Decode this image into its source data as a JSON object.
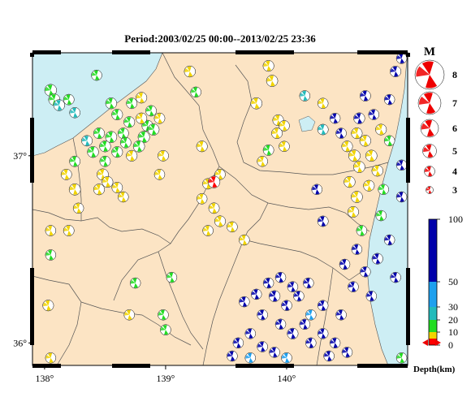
{
  "title": "Period:2003/02/25 00:00--2013/02/25 23:36",
  "map": {
    "lon_range": [
      137.9,
      141.0
    ],
    "lat_range": [
      35.88,
      37.55
    ],
    "x_ticks": [
      {
        "value": 138,
        "label": "138°"
      },
      {
        "value": 139,
        "label": "139°"
      },
      {
        "value": 140,
        "label": "140°"
      }
    ],
    "y_ticks": [
      {
        "value": 36,
        "label": "36°"
      },
      {
        "value": 37,
        "label": "37°"
      }
    ],
    "colors": {
      "land": "#fce4c4",
      "sea": "#cdeef4",
      "border": "#555555",
      "frame": "#000000"
    }
  },
  "magnitude_legend": {
    "label": "M",
    "items": [
      {
        "label": "8",
        "magnitude": 8
      },
      {
        "label": "7",
        "magnitude": 7
      },
      {
        "label": "6",
        "magnitude": 6
      },
      {
        "label": "5",
        "magnitude": 5
      },
      {
        "label": "4",
        "magnitude": 4
      },
      {
        "label": "3",
        "magnitude": 3
      }
    ],
    "color": "#ee0000"
  },
  "depth_legend": {
    "label": "Depth(km)",
    "ticks": [
      "0",
      "10",
      "20",
      "30",
      "50",
      "100"
    ],
    "bands": [
      {
        "from": 0,
        "to": 10,
        "color": "#ff0000"
      },
      {
        "from": 10,
        "to": 20,
        "color": "#f2d400"
      },
      {
        "from": 20,
        "to": 30,
        "color": "#22dd22"
      },
      {
        "from": 30,
        "to": 50,
        "color": "#22bbbb"
      },
      {
        "from": 50,
        "to": 100,
        "color": "#1ea0ee"
      },
      {
        "from": 100,
        "to": 200,
        "color": "#0000aa"
      }
    ]
  },
  "events": [
    {
      "lon": 138.05,
      "lat": 37.35,
      "color": "#22dd22",
      "mag": 3.6
    },
    {
      "lon": 138.08,
      "lat": 37.3,
      "color": "#22dd22",
      "mag": 3.4
    },
    {
      "lon": 138.12,
      "lat": 37.27,
      "color": "#22bbbb",
      "mag": 3.3
    },
    {
      "lon": 138.2,
      "lat": 37.3,
      "color": "#22dd22",
      "mag": 3.1
    },
    {
      "lon": 138.25,
      "lat": 37.23,
      "color": "#22bbbb",
      "mag": 3
    },
    {
      "lon": 138.43,
      "lat": 37.43,
      "color": "#22dd22",
      "mag": 3
    },
    {
      "lon": 138.55,
      "lat": 37.28,
      "color": "#22dd22",
      "mag": 3.3
    },
    {
      "lon": 138.6,
      "lat": 37.22,
      "color": "#22dd22",
      "mag": 3.2
    },
    {
      "lon": 138.72,
      "lat": 37.28,
      "color": "#22dd22",
      "mag": 3.1
    },
    {
      "lon": 138.8,
      "lat": 37.31,
      "color": "#f2d400",
      "mag": 3.2
    },
    {
      "lon": 138.88,
      "lat": 37.24,
      "color": "#22dd22",
      "mag": 3.1
    },
    {
      "lon": 138.85,
      "lat": 37.16,
      "color": "#22dd22",
      "mag": 3.3
    },
    {
      "lon": 138.9,
      "lat": 37.14,
      "color": "#22dd22",
      "mag": 3.4
    },
    {
      "lon": 138.82,
      "lat": 37.1,
      "color": "#22dd22",
      "mag": 3.5
    },
    {
      "lon": 138.78,
      "lat": 37.05,
      "color": "#22dd22",
      "mag": 3.4
    },
    {
      "lon": 138.7,
      "lat": 37.18,
      "color": "#22dd22",
      "mag": 3.2
    },
    {
      "lon": 138.65,
      "lat": 37.12,
      "color": "#22dd22",
      "mag": 3.1
    },
    {
      "lon": 138.55,
      "lat": 37.1,
      "color": "#22dd22",
      "mag": 3.4
    },
    {
      "lon": 138.5,
      "lat": 37.05,
      "color": "#22dd22",
      "mag": 3.3
    },
    {
      "lon": 138.45,
      "lat": 37.12,
      "color": "#22dd22",
      "mag": 3.2
    },
    {
      "lon": 138.35,
      "lat": 37.08,
      "color": "#22bbbb",
      "mag": 3.1
    },
    {
      "lon": 138.4,
      "lat": 37.02,
      "color": "#22dd22",
      "mag": 3.3
    },
    {
      "lon": 138.6,
      "lat": 37.02,
      "color": "#22dd22",
      "mag": 3.2
    },
    {
      "lon": 138.67,
      "lat": 37.07,
      "color": "#22dd22",
      "mag": 3.1
    },
    {
      "lon": 138.72,
      "lat": 37.0,
      "color": "#f2d400",
      "mag": 3.2
    },
    {
      "lon": 138.8,
      "lat": 37.2,
      "color": "#f2d400",
      "mag": 3.2
    },
    {
      "lon": 138.95,
      "lat": 37.2,
      "color": "#f2d400",
      "mag": 3.1
    },
    {
      "lon": 138.5,
      "lat": 36.97,
      "color": "#22dd22",
      "mag": 3.1
    },
    {
      "lon": 138.25,
      "lat": 36.97,
      "color": "#22dd22",
      "mag": 3.1
    },
    {
      "lon": 138.18,
      "lat": 36.9,
      "color": "#f2d400",
      "mag": 3.1
    },
    {
      "lon": 138.48,
      "lat": 36.9,
      "color": "#f2d400",
      "mag": 3.4
    },
    {
      "lon": 138.52,
      "lat": 36.86,
      "color": "#f2d400",
      "mag": 3.2
    },
    {
      "lon": 138.6,
      "lat": 36.83,
      "color": "#f2d400",
      "mag": 3.1
    },
    {
      "lon": 138.65,
      "lat": 36.78,
      "color": "#f2d400",
      "mag": 3
    },
    {
      "lon": 138.45,
      "lat": 36.82,
      "color": "#f2d400",
      "mag": 3.2
    },
    {
      "lon": 138.98,
      "lat": 37.0,
      "color": "#f2d400",
      "mag": 3.1
    },
    {
      "lon": 138.05,
      "lat": 36.6,
      "color": "#f2d400",
      "mag": 3
    },
    {
      "lon": 138.05,
      "lat": 36.47,
      "color": "#22dd22",
      "mag": 3
    },
    {
      "lon": 138.03,
      "lat": 36.2,
      "color": "#f2d400",
      "mag": 3.2
    },
    {
      "lon": 138.05,
      "lat": 35.92,
      "color": "#f2d400",
      "mag": 3
    },
    {
      "lon": 138.25,
      "lat": 36.82,
      "color": "#f2d400",
      "mag": 3.4
    },
    {
      "lon": 138.28,
      "lat": 36.72,
      "color": "#f2d400",
      "mag": 3
    },
    {
      "lon": 138.2,
      "lat": 36.6,
      "color": "#f2d400",
      "mag": 3.1
    },
    {
      "lon": 138.75,
      "lat": 36.32,
      "color": "#22dd22",
      "mag": 3
    },
    {
      "lon": 138.7,
      "lat": 36.15,
      "color": "#f2d400",
      "mag": 3
    },
    {
      "lon": 138.98,
      "lat": 36.15,
      "color": "#22dd22",
      "mag": 3
    },
    {
      "lon": 138.95,
      "lat": 36.9,
      "color": "#f2d400",
      "mag": 3
    },
    {
      "lon": 139.0,
      "lat": 36.07,
      "color": "#22dd22",
      "mag": 3
    },
    {
      "lon": 139.05,
      "lat": 36.35,
      "color": "#22dd22",
      "mag": 3
    },
    {
      "lon": 139.3,
      "lat": 37.05,
      "color": "#f2d400",
      "mag": 3.2
    },
    {
      "lon": 139.35,
      "lat": 36.85,
      "color": "#f2d400",
      "mag": 3.1
    },
    {
      "lon": 139.45,
      "lat": 36.9,
      "color": "#f2d400",
      "mag": 3
    },
    {
      "lon": 139.3,
      "lat": 36.77,
      "color": "#f2d400",
      "mag": 3
    },
    {
      "lon": 139.4,
      "lat": 36.72,
      "color": "#f2d400",
      "mag": 3.1
    },
    {
      "lon": 139.45,
      "lat": 36.65,
      "color": "#f2d400",
      "mag": 3.2
    },
    {
      "lon": 139.55,
      "lat": 36.62,
      "color": "#f2d400",
      "mag": 3
    },
    {
      "lon": 139.35,
      "lat": 36.6,
      "color": "#f2d400",
      "mag": 3
    },
    {
      "lon": 139.65,
      "lat": 36.55,
      "color": "#f2d400",
      "mag": 3
    },
    {
      "lon": 139.4,
      "lat": 36.86,
      "color": "#ff0000",
      "mag": 3.6
    },
    {
      "lon": 139.2,
      "lat": 37.45,
      "color": "#f2d400",
      "mag": 3.3
    },
    {
      "lon": 139.25,
      "lat": 37.34,
      "color": "#22dd22",
      "mag": 3
    },
    {
      "lon": 139.85,
      "lat": 37.48,
      "color": "#f2d400",
      "mag": 3.2
    },
    {
      "lon": 139.88,
      "lat": 37.4,
      "color": "#f2d400",
      "mag": 3.4
    },
    {
      "lon": 139.75,
      "lat": 37.28,
      "color": "#f2d400",
      "mag": 3.4
    },
    {
      "lon": 139.93,
      "lat": 37.19,
      "color": "#f2d400",
      "mag": 3.2
    },
    {
      "lon": 139.98,
      "lat": 37.16,
      "color": "#f2d400",
      "mag": 3
    },
    {
      "lon": 139.92,
      "lat": 37.12,
      "color": "#f2d400",
      "mag": 3.1
    },
    {
      "lon": 139.98,
      "lat": 37.05,
      "color": "#f2d400",
      "mag": 3
    },
    {
      "lon": 140.15,
      "lat": 37.32,
      "color": "#22bbbb",
      "mag": 3
    },
    {
      "lon": 140.3,
      "lat": 37.28,
      "color": "#f2d400",
      "mag": 3
    },
    {
      "lon": 140.3,
      "lat": 37.14,
      "color": "#22bbbb",
      "mag": 3.1
    },
    {
      "lon": 139.85,
      "lat": 37.03,
      "color": "#22dd22",
      "mag": 3.1
    },
    {
      "lon": 139.8,
      "lat": 36.97,
      "color": "#f2d400",
      "mag": 3
    },
    {
      "lon": 140.25,
      "lat": 36.82,
      "color": "#0000aa",
      "mag": 3
    },
    {
      "lon": 140.3,
      "lat": 36.65,
      "color": "#0000aa",
      "mag": 3.1
    },
    {
      "lon": 140.18,
      "lat": 36.32,
      "color": "#0000aa",
      "mag": 3
    },
    {
      "lon": 140.05,
      "lat": 36.3,
      "color": "#0000aa",
      "mag": 3
    },
    {
      "lon": 139.95,
      "lat": 36.35,
      "color": "#0000aa",
      "mag": 3
    },
    {
      "lon": 139.85,
      "lat": 36.32,
      "color": "#0000aa",
      "mag": 3
    },
    {
      "lon": 139.75,
      "lat": 36.26,
      "color": "#0000aa",
      "mag": 3
    },
    {
      "lon": 139.65,
      "lat": 36.22,
      "color": "#0000aa",
      "mag": 3
    },
    {
      "lon": 139.9,
      "lat": 36.25,
      "color": "#0000aa",
      "mag": 3.3
    },
    {
      "lon": 140.0,
      "lat": 36.2,
      "color": "#0000aa",
      "mag": 3
    },
    {
      "lon": 140.1,
      "lat": 36.25,
      "color": "#0000aa",
      "mag": 3
    },
    {
      "lon": 139.8,
      "lat": 36.15,
      "color": "#0000aa",
      "mag": 3
    },
    {
      "lon": 139.95,
      "lat": 36.1,
      "color": "#0000aa",
      "mag": 3
    },
    {
      "lon": 140.05,
      "lat": 36.05,
      "color": "#0000aa",
      "mag": 3.2
    },
    {
      "lon": 140.15,
      "lat": 36.1,
      "color": "#0000aa",
      "mag": 3
    },
    {
      "lon": 139.7,
      "lat": 36.05,
      "color": "#0000aa",
      "mag": 3
    },
    {
      "lon": 139.6,
      "lat": 36.0,
      "color": "#0000aa",
      "mag": 3
    },
    {
      "lon": 139.8,
      "lat": 35.98,
      "color": "#0000aa",
      "mag": 3
    },
    {
      "lon": 139.9,
      "lat": 35.95,
      "color": "#0000aa",
      "mag": 3
    },
    {
      "lon": 140.2,
      "lat": 36.0,
      "color": "#0000aa",
      "mag": 3
    },
    {
      "lon": 140.3,
      "lat": 36.05,
      "color": "#0000aa",
      "mag": 3
    },
    {
      "lon": 140.4,
      "lat": 36.0,
      "color": "#0000aa",
      "mag": 3
    },
    {
      "lon": 139.55,
      "lat": 35.93,
      "color": "#0000aa",
      "mag": 3
    },
    {
      "lon": 139.7,
      "lat": 35.92,
      "color": "#1ea0ee",
      "mag": 3
    },
    {
      "lon": 140.0,
      "lat": 35.92,
      "color": "#1ea0ee",
      "mag": 3
    },
    {
      "lon": 140.35,
      "lat": 35.93,
      "color": "#0000aa",
      "mag": 3
    },
    {
      "lon": 140.5,
      "lat": 35.95,
      "color": "#0000aa",
      "mag": 3
    },
    {
      "lon": 140.2,
      "lat": 36.15,
      "color": "#1ea0ee",
      "mag": 3
    },
    {
      "lon": 140.3,
      "lat": 36.2,
      "color": "#0000aa",
      "mag": 3
    },
    {
      "lon": 140.45,
      "lat": 36.15,
      "color": "#0000aa",
      "mag": 3
    },
    {
      "lon": 140.55,
      "lat": 36.3,
      "color": "#0000aa",
      "mag": 3
    },
    {
      "lon": 140.48,
      "lat": 36.42,
      "color": "#0000aa",
      "mag": 3
    },
    {
      "lon": 140.58,
      "lat": 36.5,
      "color": "#0000aa",
      "mag": 3
    },
    {
      "lon": 140.65,
      "lat": 36.38,
      "color": "#0000aa",
      "mag": 3
    },
    {
      "lon": 140.7,
      "lat": 36.25,
      "color": "#0000aa",
      "mag": 3
    },
    {
      "lon": 140.75,
      "lat": 36.45,
      "color": "#0000aa",
      "mag": 3.2
    },
    {
      "lon": 140.85,
      "lat": 36.55,
      "color": "#0000aa",
      "mag": 3
    },
    {
      "lon": 140.78,
      "lat": 36.68,
      "color": "#22dd22",
      "mag": 3
    },
    {
      "lon": 140.9,
      "lat": 36.35,
      "color": "#0000aa",
      "mag": 3
    },
    {
      "lon": 140.62,
      "lat": 36.6,
      "color": "#22dd22",
      "mag": 3
    },
    {
      "lon": 140.55,
      "lat": 36.7,
      "color": "#f2d400",
      "mag": 3.2
    },
    {
      "lon": 140.58,
      "lat": 36.78,
      "color": "#f2d400",
      "mag": 3.4
    },
    {
      "lon": 140.52,
      "lat": 36.86,
      "color": "#f2d400",
      "mag": 3.3
    },
    {
      "lon": 140.6,
      "lat": 36.94,
      "color": "#f2d400",
      "mag": 3.4
    },
    {
      "lon": 140.56,
      "lat": 37.0,
      "color": "#f2d400",
      "mag": 3.5
    },
    {
      "lon": 140.65,
      "lat": 37.08,
      "color": "#f2d400",
      "mag": 3.3
    },
    {
      "lon": 140.58,
      "lat": 37.12,
      "color": "#f2d400",
      "mag": 3.2
    },
    {
      "lon": 140.7,
      "lat": 37.0,
      "color": "#f2d400",
      "mag": 3.4
    },
    {
      "lon": 140.75,
      "lat": 36.92,
      "color": "#f2d400",
      "mag": 3.3
    },
    {
      "lon": 140.68,
      "lat": 36.84,
      "color": "#f2d400",
      "mag": 3.2
    },
    {
      "lon": 140.8,
      "lat": 36.82,
      "color": "#22dd22",
      "mag": 3
    },
    {
      "lon": 140.78,
      "lat": 37.14,
      "color": "#f2d400",
      "mag": 3.2
    },
    {
      "lon": 140.85,
      "lat": 37.08,
      "color": "#22dd22",
      "mag": 3
    },
    {
      "lon": 140.5,
      "lat": 37.05,
      "color": "#f2d400",
      "mag": 3.2
    },
    {
      "lon": 140.45,
      "lat": 37.12,
      "color": "#0000aa",
      "mag": 3
    },
    {
      "lon": 140.4,
      "lat": 37.2,
      "color": "#0000aa",
      "mag": 3
    },
    {
      "lon": 140.6,
      "lat": 37.2,
      "color": "#0000aa",
      "mag": 3.3
    },
    {
      "lon": 140.72,
      "lat": 37.22,
      "color": "#0000aa",
      "mag": 3
    },
    {
      "lon": 140.65,
      "lat": 37.32,
      "color": "#0000aa",
      "mag": 3.1
    },
    {
      "lon": 140.85,
      "lat": 37.3,
      "color": "#0000aa",
      "mag": 3
    },
    {
      "lon": 140.9,
      "lat": 37.45,
      "color": "#0000aa",
      "mag": 3.2
    },
    {
      "lon": 140.95,
      "lat": 37.52,
      "color": "#0000aa",
      "mag": 3
    },
    {
      "lon": 140.95,
      "lat": 36.78,
      "color": "#0000aa",
      "mag": 3
    },
    {
      "lon": 140.95,
      "lat": 36.95,
      "color": "#0000aa",
      "mag": 3
    },
    {
      "lon": 140.95,
      "lat": 35.92,
      "color": "#22dd22",
      "mag": 3
    }
  ]
}
